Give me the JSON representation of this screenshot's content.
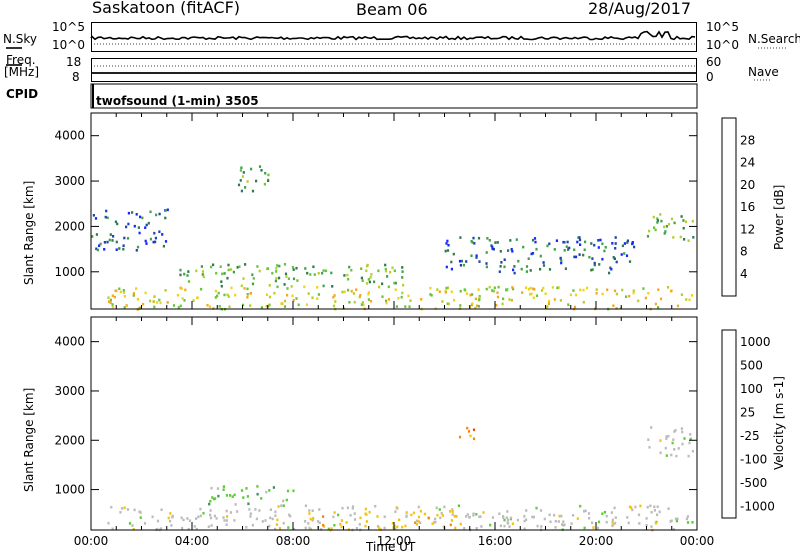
{
  "header": {
    "station": "Saskatoon (fitACF)",
    "beam": "Beam 06",
    "date": "28/Aug/2017"
  },
  "top_panels": {
    "nsky_label": "N.Sky",
    "nsky_hi": "10^5",
    "nsky_lo": "10^0",
    "nsearch_label": "N.Search",
    "nsearch_hi": "10^5",
    "nsearch_lo": "10^0",
    "freq_label": "Freq.",
    "freq_unit": "[MHz]",
    "freq_hi": "18",
    "freq_lo": "8",
    "nave_label": "Nave",
    "nave_hi": "60",
    "nave_lo": "0",
    "cpid_label": "CPID",
    "cpid_value": "twofsound (1-min) 3505"
  },
  "chart_data": [
    {
      "type": "heatmap",
      "name": "power",
      "ylabel": "Slant Range [km]",
      "xlabel": "",
      "yticks": [
        "1000",
        "2000",
        "3000",
        "4000"
      ],
      "ylim": [
        180,
        4500
      ],
      "xlim": [
        0,
        24
      ],
      "colorbar": {
        "label": "Power [dB]",
        "ticks": [
          "4",
          "8",
          "12",
          "16",
          "20",
          "24",
          "28"
        ],
        "colors": [
          "#1428ff",
          "#1e46a8",
          "#2f7a4e",
          "#3fa14a",
          "#62c83a",
          "#b6cf2b",
          "#f0d21e",
          "#f5a623",
          "#f07c1e",
          "#e8481c",
          "#e01c1c"
        ]
      },
      "features": [
        {
          "label": "near-range band",
          "t_start": 0.6,
          "t_end": 23.8,
          "r_start": 200,
          "r_end": 700,
          "level": "high"
        },
        {
          "label": "mid band",
          "t_start": 3.5,
          "t_end": 12.5,
          "r_start": 700,
          "r_end": 1200,
          "level": "medium"
        },
        {
          "label": "early arc",
          "t_start": 0.0,
          "t_end": 3.0,
          "r_start": 1500,
          "r_end": 2400,
          "level": "low"
        },
        {
          "label": "evening arc",
          "t_start": 14.0,
          "t_end": 21.5,
          "r_start": 1000,
          "r_end": 1800,
          "level": "low"
        },
        {
          "label": "late patch",
          "t_start": 22.0,
          "t_end": 24.0,
          "r_start": 1700,
          "r_end": 2300,
          "level": "medium"
        },
        {
          "label": "morning patch",
          "t_start": 5.8,
          "t_end": 7.0,
          "r_start": 2700,
          "r_end": 3400,
          "level": "medium"
        }
      ]
    },
    {
      "type": "heatmap",
      "name": "velocity",
      "ylabel": "Slant Range [km]",
      "xlabel": "Time UT",
      "xticks": [
        "00:00",
        "04:00",
        "08:00",
        "12:00",
        "16:00",
        "20:00",
        "00:00"
      ],
      "yticks": [
        "1000",
        "2000",
        "3000",
        "4000"
      ],
      "ylim": [
        180,
        4500
      ],
      "xlim": [
        0,
        24
      ],
      "colorbar": {
        "label": "Velocity [m s-1]",
        "ticks": [
          "1000",
          "500",
          "100",
          "25",
          "-25",
          "-100",
          "-500",
          "-1000"
        ],
        "colors": [
          "#2a37c8",
          "#2f6fae",
          "#3a8f5c",
          "#5ccc34",
          "#bcbcbc",
          "#f5c20e",
          "#f28a10",
          "#ee4a14",
          "#e01c1c"
        ]
      },
      "features": [
        {
          "label": "ground scatter band",
          "t_start": 0.6,
          "t_end": 23.8,
          "r_start": 200,
          "r_end": 700,
          "class": "-25..25"
        },
        {
          "label": "noon negative flow",
          "t_start": 8.5,
          "t_end": 14.5,
          "r_start": 200,
          "r_end": 600,
          "class": "-100"
        },
        {
          "label": "morning positive flow",
          "t_start": 4.5,
          "t_end": 8.0,
          "r_start": 700,
          "r_end": 1100,
          "class": "100"
        },
        {
          "label": "evening negative patch",
          "t_start": 14.5,
          "t_end": 15.2,
          "r_start": 1900,
          "r_end": 2300,
          "class": "-500"
        },
        {
          "label": "late ground scatter",
          "t_start": 22.0,
          "t_end": 24.0,
          "r_start": 1700,
          "r_end": 2300,
          "class": "-25..25"
        }
      ]
    }
  ]
}
